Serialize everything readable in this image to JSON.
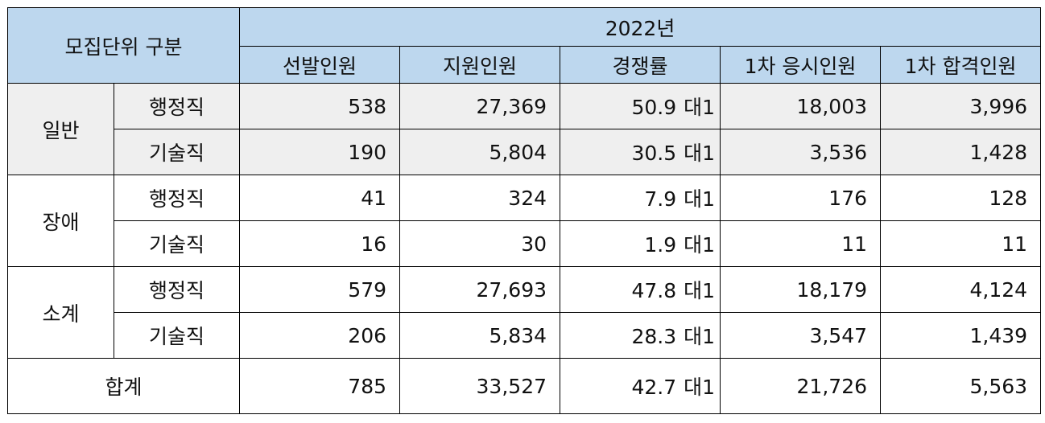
{
  "header": {
    "unit_label": "모집단위 구분",
    "year": "2022년",
    "columns": [
      "선발인원",
      "지원인원",
      "경쟁률",
      "1차 응시인원",
      "1차 합격인원"
    ]
  },
  "ratio_unit": "대1",
  "groups": [
    {
      "name": "일반",
      "rows": [
        {
          "type": "행정직",
          "selected": "538",
          "applicants": "27,369",
          "ratio": "50.9",
          "first_exam": "18,003",
          "first_pass": "3,996"
        },
        {
          "type": "기술직",
          "selected": "190",
          "applicants": "5,804",
          "ratio": "30.5",
          "first_exam": "3,536",
          "first_pass": "1,428"
        }
      ]
    },
    {
      "name": "장애",
      "rows": [
        {
          "type": "행정직",
          "selected": "41",
          "applicants": "324",
          "ratio": "7.9",
          "first_exam": "176",
          "first_pass": "128"
        },
        {
          "type": "기술직",
          "selected": "16",
          "applicants": "30",
          "ratio": "1.9",
          "first_exam": "11",
          "first_pass": "11"
        }
      ]
    },
    {
      "name": "소계",
      "rows": [
        {
          "type": "행정직",
          "selected": "579",
          "applicants": "27,693",
          "ratio": "47.8",
          "first_exam": "18,179",
          "first_pass": "4,124"
        },
        {
          "type": "기술직",
          "selected": "206",
          "applicants": "5,834",
          "ratio": "28.3",
          "first_exam": "3,547",
          "first_pass": "1,439"
        }
      ]
    }
  ],
  "total": {
    "label": "합계",
    "selected": "785",
    "applicants": "33,527",
    "ratio": "42.7",
    "first_exam": "21,726",
    "first_pass": "5,563"
  }
}
